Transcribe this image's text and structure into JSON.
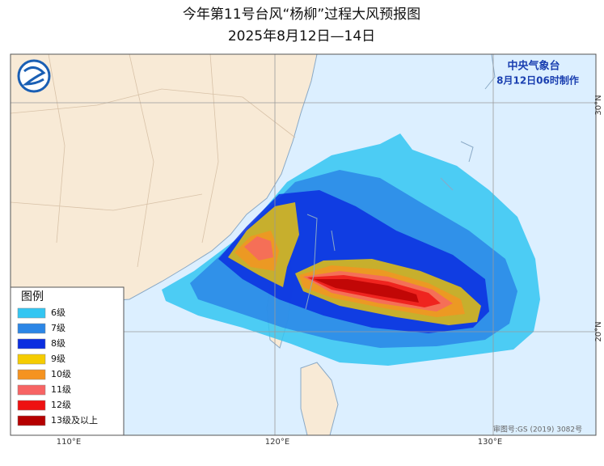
{
  "header": {
    "title": "今年第11号台风“杨柳”过程大风预报图",
    "subtitle": "2025年8月12日—14日"
  },
  "agency": {
    "name": "中央气象台",
    "issued": "8月12日06时制作"
  },
  "legend": {
    "title": "图例",
    "items": [
      {
        "label": "6级",
        "color": "#33c6f2"
      },
      {
        "label": "7级",
        "color": "#2b86e6"
      },
      {
        "label": "8级",
        "color": "#0b2ee0"
      },
      {
        "label": "9级",
        "color": "#f5cc00"
      },
      {
        "label": "10级",
        "color": "#f59320"
      },
      {
        "label": "11级",
        "color": "#f76464"
      },
      {
        "label": "12级",
        "color": "#ee1111"
      },
      {
        "label": "13级及以上",
        "color": "#b50000"
      }
    ]
  },
  "axes": {
    "lon": [
      "110°E",
      "120°E",
      "130°E"
    ],
    "lat": [
      "30°N",
      "20°N"
    ]
  },
  "review_number": "审图号:GS (2019) 3082号"
}
